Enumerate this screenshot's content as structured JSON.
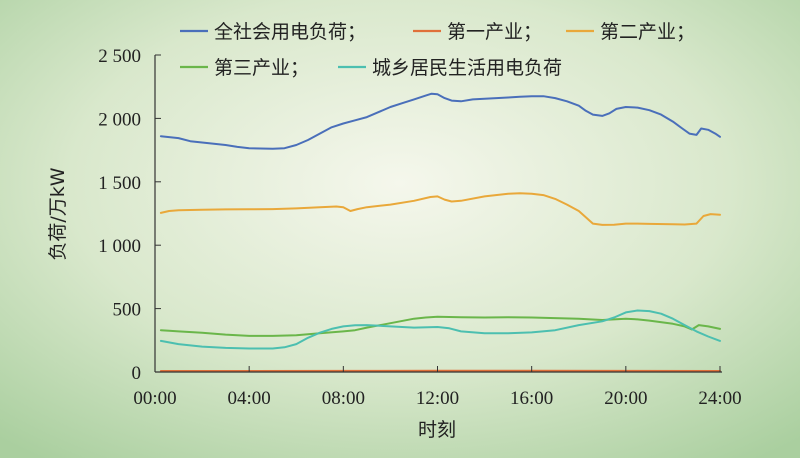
{
  "chart_data": {
    "type": "line",
    "title": "",
    "xlabel": "时刻",
    "ylabel": "负荷/万kW",
    "xlim": [
      0,
      24
    ],
    "ylim": [
      0,
      2500
    ],
    "xticks": [
      0,
      4,
      8,
      12,
      16,
      20,
      24
    ],
    "xtick_labels": [
      "00:00",
      "04:00",
      "08:00",
      "12:00",
      "16:00",
      "20:00",
      "24:00"
    ],
    "yticks": [
      0,
      500,
      1000,
      1500,
      2000,
      2500
    ],
    "ytick_labels": [
      "0",
      "500",
      "1 000",
      "1 500",
      "2 000",
      "2 500"
    ],
    "grid": false,
    "legend_position": "top",
    "colors": {
      "background_center": "#f5f7ec",
      "background_edge": "#aacf9f",
      "axis": "#333333"
    },
    "series": [
      {
        "name": "全社会用电负荷；",
        "color": "#4a6fba",
        "points": [
          [
            0.25,
            1860
          ],
          [
            1,
            1845
          ],
          [
            1.5,
            1820
          ],
          [
            2,
            1810
          ],
          [
            3,
            1790
          ],
          [
            3.5,
            1775
          ],
          [
            4,
            1765
          ],
          [
            5,
            1760
          ],
          [
            5.5,
            1765
          ],
          [
            6,
            1790
          ],
          [
            6.5,
            1830
          ],
          [
            7,
            1880
          ],
          [
            7.5,
            1930
          ],
          [
            8,
            1960
          ],
          [
            8.5,
            1985
          ],
          [
            9,
            2010
          ],
          [
            9.5,
            2050
          ],
          [
            10,
            2090
          ],
          [
            10.5,
            2120
          ],
          [
            11,
            2150
          ],
          [
            11.5,
            2180
          ],
          [
            11.75,
            2195
          ],
          [
            12,
            2190
          ],
          [
            12.3,
            2160
          ],
          [
            12.6,
            2140
          ],
          [
            13,
            2135
          ],
          [
            13.5,
            2150
          ],
          [
            14,
            2155
          ],
          [
            14.5,
            2160
          ],
          [
            15,
            2165
          ],
          [
            15.5,
            2170
          ],
          [
            16,
            2175
          ],
          [
            16.5,
            2175
          ],
          [
            17,
            2160
          ],
          [
            17.5,
            2135
          ],
          [
            18,
            2100
          ],
          [
            18.3,
            2060
          ],
          [
            18.6,
            2030
          ],
          [
            19,
            2020
          ],
          [
            19.3,
            2040
          ],
          [
            19.6,
            2075
          ],
          [
            20,
            2090
          ],
          [
            20.5,
            2085
          ],
          [
            21,
            2065
          ],
          [
            21.5,
            2030
          ],
          [
            22,
            1975
          ],
          [
            22.4,
            1920
          ],
          [
            22.7,
            1880
          ],
          [
            23,
            1870
          ],
          [
            23.2,
            1920
          ],
          [
            23.5,
            1910
          ],
          [
            23.8,
            1880
          ],
          [
            24,
            1855
          ]
        ]
      },
      {
        "name": "第一产业；",
        "color": "#e0703a",
        "points": [
          [
            0.25,
            8
          ],
          [
            4,
            8
          ],
          [
            8,
            9
          ],
          [
            12,
            10
          ],
          [
            16,
            10
          ],
          [
            20,
            9
          ],
          [
            24,
            8
          ]
        ]
      },
      {
        "name": "第二产业；",
        "color": "#e9a83a",
        "points": [
          [
            0.25,
            1255
          ],
          [
            0.6,
            1270
          ],
          [
            1,
            1275
          ],
          [
            2,
            1280
          ],
          [
            3,
            1282
          ],
          [
            4,
            1283
          ],
          [
            5,
            1285
          ],
          [
            6,
            1290
          ],
          [
            7,
            1300
          ],
          [
            7.7,
            1305
          ],
          [
            8,
            1300
          ],
          [
            8.3,
            1270
          ],
          [
            8.6,
            1285
          ],
          [
            9,
            1300
          ],
          [
            10,
            1320
          ],
          [
            11,
            1350
          ],
          [
            11.7,
            1380
          ],
          [
            12,
            1385
          ],
          [
            12.3,
            1360
          ],
          [
            12.6,
            1345
          ],
          [
            13,
            1350
          ],
          [
            14,
            1385
          ],
          [
            15,
            1405
          ],
          [
            15.5,
            1410
          ],
          [
            16,
            1405
          ],
          [
            16.5,
            1395
          ],
          [
            17,
            1365
          ],
          [
            17.5,
            1320
          ],
          [
            18,
            1270
          ],
          [
            18.3,
            1220
          ],
          [
            18.6,
            1170
          ],
          [
            19,
            1160
          ],
          [
            19.5,
            1162
          ],
          [
            20,
            1170
          ],
          [
            20.5,
            1170
          ],
          [
            21,
            1168
          ],
          [
            22,
            1165
          ],
          [
            22.5,
            1163
          ],
          [
            23,
            1170
          ],
          [
            23.3,
            1230
          ],
          [
            23.6,
            1245
          ],
          [
            24,
            1240
          ]
        ]
      },
      {
        "name": "第三产业；",
        "color": "#6ab64a",
        "points": [
          [
            0.25,
            330
          ],
          [
            0.6,
            325
          ],
          [
            1,
            320
          ],
          [
            2,
            310
          ],
          [
            3,
            295
          ],
          [
            4,
            285
          ],
          [
            5,
            285
          ],
          [
            6,
            290
          ],
          [
            7,
            305
          ],
          [
            8,
            320
          ],
          [
            8.5,
            330
          ],
          [
            9,
            350
          ],
          [
            10,
            385
          ],
          [
            11,
            420
          ],
          [
            11.5,
            430
          ],
          [
            12,
            435
          ],
          [
            13,
            432
          ],
          [
            14,
            430
          ],
          [
            15,
            432
          ],
          [
            16,
            430
          ],
          [
            17,
            425
          ],
          [
            18,
            420
          ],
          [
            19,
            410
          ],
          [
            20,
            420
          ],
          [
            20.5,
            415
          ],
          [
            21,
            405
          ],
          [
            22,
            380
          ],
          [
            22.5,
            360
          ],
          [
            22.8,
            335
          ],
          [
            23.1,
            370
          ],
          [
            23.5,
            360
          ],
          [
            24,
            340
          ]
        ]
      },
      {
        "name": "城乡居民生活用电负荷",
        "color": "#4cbfb0",
        "points": [
          [
            0.25,
            245
          ],
          [
            1,
            220
          ],
          [
            2,
            200
          ],
          [
            3,
            190
          ],
          [
            4,
            185
          ],
          [
            5,
            185
          ],
          [
            5.5,
            195
          ],
          [
            6,
            220
          ],
          [
            6.5,
            270
          ],
          [
            7,
            310
          ],
          [
            7.5,
            340
          ],
          [
            8,
            360
          ],
          [
            8.5,
            368
          ],
          [
            9,
            370
          ],
          [
            10,
            360
          ],
          [
            11,
            350
          ],
          [
            12,
            355
          ],
          [
            12.5,
            345
          ],
          [
            13,
            320
          ],
          [
            14,
            305
          ],
          [
            15,
            305
          ],
          [
            16,
            312
          ],
          [
            17,
            330
          ],
          [
            18,
            370
          ],
          [
            19,
            400
          ],
          [
            19.5,
            430
          ],
          [
            20,
            470
          ],
          [
            20.5,
            485
          ],
          [
            21,
            480
          ],
          [
            21.5,
            460
          ],
          [
            22,
            420
          ],
          [
            22.5,
            370
          ],
          [
            23,
            320
          ],
          [
            23.5,
            280
          ],
          [
            24,
            245
          ]
        ]
      }
    ]
  }
}
